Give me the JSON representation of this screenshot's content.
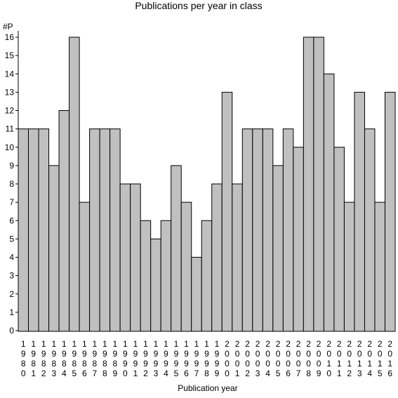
{
  "chart_data": {
    "type": "bar",
    "title": "Publications per year in class",
    "ylabel": "#P",
    "xlabel": "Publication year",
    "ylim": [
      0,
      16
    ],
    "yticks": [
      0,
      1,
      2,
      3,
      4,
      5,
      6,
      7,
      8,
      9,
      10,
      11,
      12,
      13,
      14,
      15,
      16
    ],
    "grid": false,
    "bar_color": "#c0c0c0",
    "categories": [
      "1980",
      "1981",
      "1982",
      "1983",
      "1984",
      "1985",
      "1986",
      "1987",
      "1988",
      "1989",
      "1990",
      "1991",
      "1992",
      "1993",
      "1994",
      "1995",
      "1996",
      "1997",
      "1998",
      "1999",
      "2000",
      "2001",
      "2002",
      "2003",
      "2004",
      "2005",
      "2006",
      "2007",
      "2008",
      "2009",
      "2010",
      "2011",
      "2012",
      "2013",
      "2014",
      "2015",
      "2016"
    ],
    "values": [
      11,
      11,
      11,
      9,
      12,
      16,
      7,
      11,
      11,
      11,
      8,
      8,
      6,
      5,
      6,
      9,
      7,
      4,
      6,
      8,
      13,
      8,
      11,
      11,
      11,
      9,
      11,
      10,
      16,
      16,
      14,
      10,
      7,
      13,
      11,
      7,
      13
    ]
  }
}
